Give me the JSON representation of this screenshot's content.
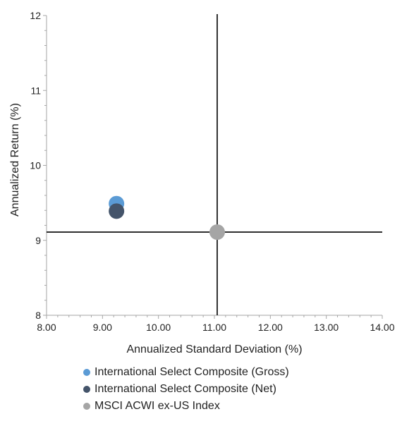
{
  "chart_data": {
    "type": "scatter",
    "xlabel": "Annualized Standard Deviation (%)",
    "ylabel": "Annualized Return  (%)",
    "xlim": [
      8,
      14
    ],
    "ylim": [
      8,
      12
    ],
    "x_ticks": [
      "8.00",
      "9.00",
      "10.00",
      "11.00",
      "12.00",
      "13.00",
      "14.00"
    ],
    "y_ticks": [
      "8",
      "9",
      "10",
      "11",
      "12"
    ],
    "reference_lines": {
      "x": 11.05,
      "y": 9.11
    },
    "legend_position": "bottom",
    "grid": false,
    "series": [
      {
        "name": "International Select Composite (Gross)",
        "color": "#5b9bd5",
        "x": 9.25,
        "y": 9.49
      },
      {
        "name": "International Select Composite (Net)",
        "color": "#44546a",
        "x": 9.25,
        "y": 9.39
      },
      {
        "name": "MSCI ACWI ex-US Index",
        "color": "#a5a5a5",
        "x": 11.05,
        "y": 9.11
      }
    ]
  }
}
